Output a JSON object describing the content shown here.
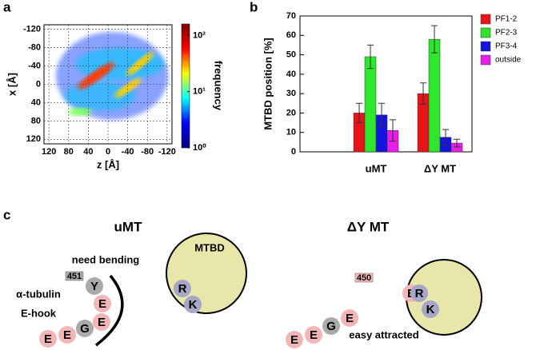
{
  "chart_data": [
    {
      "panel_label": "a",
      "type": "heatmap",
      "xlabel": "z [Å]",
      "ylabel": "x [Å]",
      "xlim": [
        130,
        -130
      ],
      "xticks": [
        120,
        80,
        40,
        0,
        -40,
        -80,
        -120
      ],
      "ylim": [
        -130,
        130
      ],
      "yticks": [
        -120,
        -80,
        -40,
        0,
        40,
        80,
        120
      ],
      "grid": true,
      "colorbar": {
        "label": "frequency",
        "scale": "log",
        "lim": [
          1,
          160
        ],
        "ticks": [
          {
            "value": 1,
            "label": "10⁰"
          },
          {
            "value": 10,
            "label": "10¹"
          },
          {
            "value": 100,
            "label": "10²"
          }
        ],
        "colors": [
          "#00007f",
          "#0000ff",
          "#00ffff",
          "#ffff00",
          "#ff0000",
          "#7f0000"
        ]
      }
    },
    {
      "panel_label": "b",
      "type": "bar",
      "ylabel": "MTBD position [%]",
      "categories": [
        "uMT",
        "ΔY MT"
      ],
      "ylim": [
        0,
        70
      ],
      "yticks": [
        0,
        10,
        20,
        30,
        40,
        50,
        60,
        70
      ],
      "legend": "top-right",
      "series": [
        {
          "name": "PF1-2",
          "color": "#e8141a",
          "values": [
            20,
            30
          ],
          "errors": [
            5,
            5.5
          ]
        },
        {
          "name": "PF2-3",
          "color": "#2ee62e",
          "values": [
            49,
            58
          ],
          "errors": [
            6,
            7
          ]
        },
        {
          "name": "PF3-4",
          "color": "#1414e0",
          "values": [
            19,
            7.5
          ],
          "errors": [
            6,
            4
          ]
        },
        {
          "name": "outside",
          "color": "#e61ee6",
          "values": [
            11,
            4.5
          ],
          "errors": [
            5.5,
            2
          ]
        }
      ]
    }
  ],
  "diagram": {
    "panel_label": "c",
    "left": {
      "title": "uMT",
      "note": "need bending",
      "label_lines": [
        "α-tubulin",
        "E-hook"
      ],
      "residue": "451",
      "beads": [
        "Y",
        "E",
        "E",
        "G",
        "E",
        "E"
      ],
      "domain": "MTBD",
      "domain_residues": [
        "R",
        "K"
      ]
    },
    "right": {
      "title": "ΔY MT",
      "note": "easy attracted",
      "residue": "450",
      "beads": [
        "E",
        "E",
        "G",
        "E",
        "E"
      ],
      "domain_residues": [
        "R",
        "K"
      ]
    }
  }
}
